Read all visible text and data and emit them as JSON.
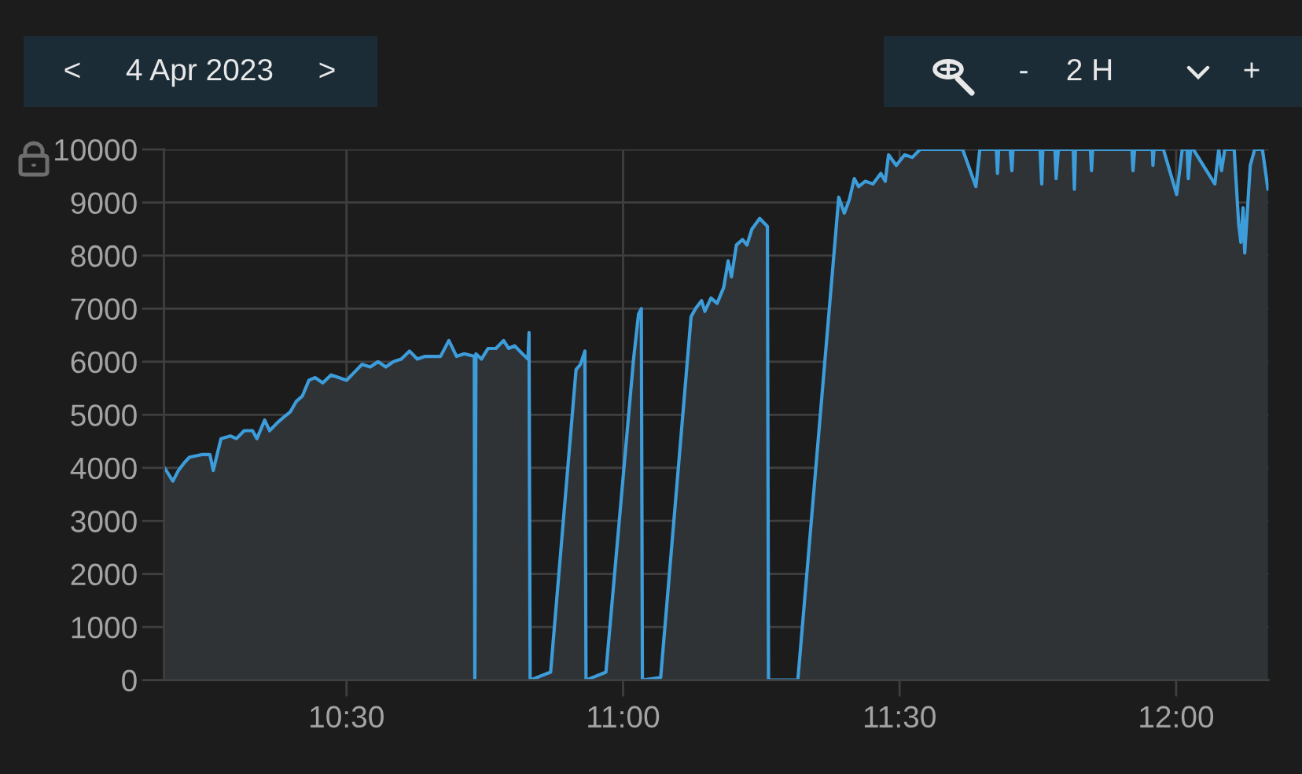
{
  "chart_data": {
    "type": "area",
    "annotations": [
      "<",
      "4 Apr 2023",
      ">",
      "-",
      "2 H",
      "+"
    ],
    "x": [
      10.171,
      10.186,
      10.196,
      10.207,
      10.216,
      10.239,
      10.253,
      10.259,
      10.273,
      10.29,
      10.301,
      10.315,
      10.33,
      10.338,
      10.352,
      10.361,
      10.375,
      10.386,
      10.398,
      10.409,
      10.42,
      10.432,
      10.443,
      10.457,
      10.472,
      10.486,
      10.5,
      10.514,
      10.528,
      10.543,
      10.557,
      10.571,
      10.585,
      10.599,
      10.614,
      10.628,
      10.642,
      10.656,
      10.67,
      10.685,
      10.699,
      10.713,
      10.731,
      10.732,
      10.734,
      10.744,
      10.756,
      10.77,
      10.784,
      10.793,
      10.804,
      10.818,
      10.828,
      10.83,
      10.832,
      10.869,
      10.915,
      10.923,
      10.931,
      10.933,
      10.969,
      11.019,
      11.028,
      11.033,
      11.035,
      11.068,
      11.123,
      11.131,
      11.142,
      11.148,
      11.159,
      11.17,
      11.182,
      11.19,
      11.196,
      11.205,
      11.216,
      11.224,
      11.233,
      11.247,
      11.261,
      11.263,
      11.316,
      11.39,
      11.4,
      11.409,
      11.418,
      11.426,
      11.438,
      11.452,
      11.466,
      11.474,
      11.48,
      11.494,
      11.509,
      11.523,
      11.537,
      11.614,
      11.638,
      11.645,
      11.675,
      11.677,
      11.679,
      11.7,
      11.703,
      11.705,
      11.754,
      11.757,
      11.759,
      11.781,
      11.783,
      11.787,
      11.814,
      11.816,
      11.818,
      11.845,
      11.847,
      11.849,
      11.92,
      11.922,
      11.925,
      11.957,
      11.958,
      11.96,
      11.977,
      12.001,
      12.011,
      12.02,
      12.022,
      12.026,
      12.031,
      12.07,
      12.077,
      12.082,
      12.088,
      12.105,
      12.113,
      12.117,
      12.121,
      12.124,
      12.134,
      12.142,
      12.156,
      12.166
    ],
    "series": [
      {
        "color": "#3d9ddb",
        "values": [
          4000,
          3750,
          3950,
          4100,
          4200,
          4250,
          4250,
          3950,
          4550,
          4600,
          4550,
          4700,
          4700,
          4550,
          4900,
          4700,
          4850,
          4950,
          5050,
          5250,
          5350,
          5650,
          5700,
          5600,
          5750,
          5700,
          5650,
          5800,
          5950,
          5900,
          6000,
          5900,
          6000,
          6050,
          6200,
          6050,
          6100,
          6100,
          6100,
          6400,
          6100,
          6150,
          6100,
          0,
          6150,
          6050,
          6250,
          6250,
          6400,
          6250,
          6300,
          6150,
          6050,
          6550,
          0,
          150,
          5850,
          5950,
          6200,
          0,
          150,
          6050,
          6900,
          7000,
          0,
          50,
          6850,
          7000,
          7150,
          6950,
          7200,
          7100,
          7400,
          7900,
          7600,
          8200,
          8300,
          8200,
          8500,
          8700,
          8550,
          0,
          0,
          9100,
          8800,
          9050,
          9450,
          9300,
          9400,
          9350,
          9550,
          9400,
          9900,
          9700,
          9900,
          9850,
          10000,
          10000,
          9300,
          10000,
          10000,
          9550,
          10000,
          10000,
          9600,
          10000,
          10000,
          9350,
          10000,
          10000,
          9450,
          10000,
          10000,
          9250,
          10000,
          10000,
          9600,
          10000,
          10000,
          9600,
          10000,
          10000,
          9700,
          10000,
          10000,
          9150,
          10000,
          10000,
          9450,
          10000,
          10000,
          9350,
          10000,
          9600,
          10000,
          10000,
          8600,
          8250,
          8900,
          8050,
          9700,
          10000,
          10000,
          9250
        ]
      }
    ],
    "xlim": [
      10.17,
      12.167
    ],
    "ylim": [
      0,
      10000
    ],
    "xticks": [
      {
        "value": 10.5,
        "label": "10:30"
      },
      {
        "value": 11,
        "label": "11:00"
      },
      {
        "value": 11.5,
        "label": "11:30"
      },
      {
        "value": 12,
        "label": "12:00"
      }
    ],
    "yticks": [
      0,
      1000,
      2000,
      3000,
      4000,
      5000,
      6000,
      7000,
      8000,
      9000,
      10000
    ],
    "grid": true,
    "line_style": "solid"
  }
}
